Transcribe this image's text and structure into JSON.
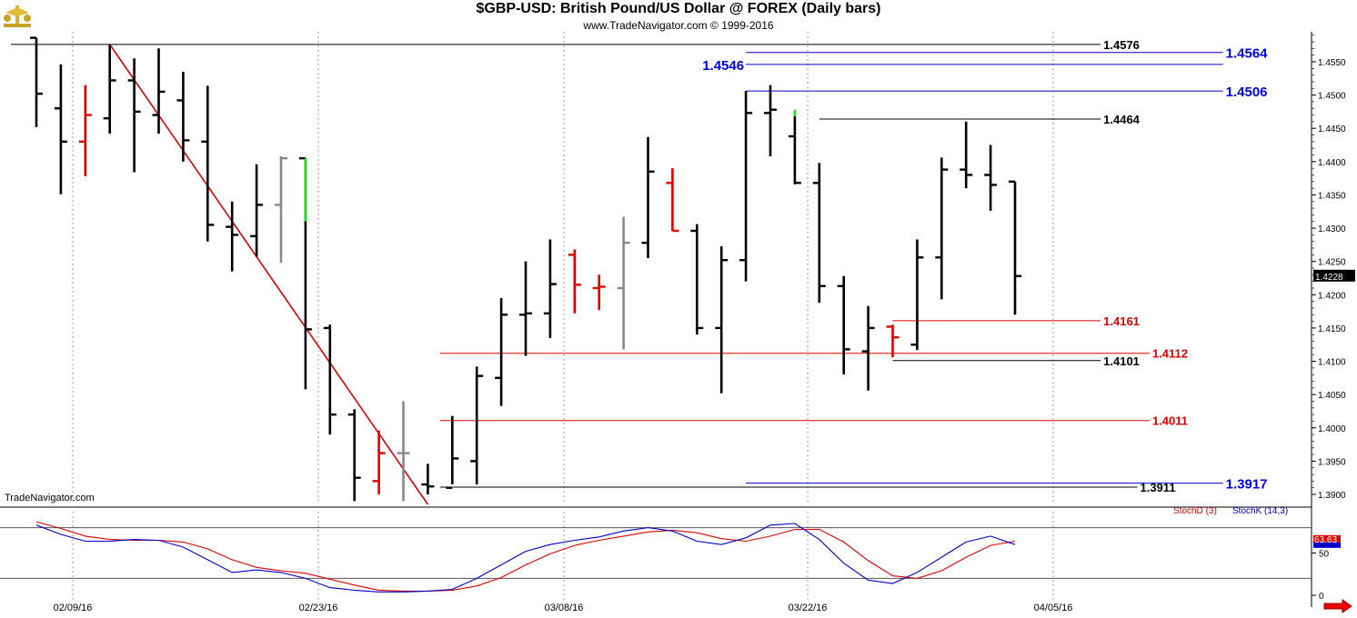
{
  "header": {
    "title": "$GBP-USD:  British Pound/US Dollar @ FOREX  (Daily bars)",
    "subtitle": "www.TradeNavigator.com © 1999-2016",
    "watermark": "TradeNavigator.com",
    "logo_icon": "trade-navigator-logo-icon"
  },
  "colors": {
    "bar_default": "#000000",
    "bar_red": "#e00000",
    "bar_gray": "#888888",
    "bar_green": "#22dd22",
    "line_red": "#dd0000",
    "line_blue": "#0000cc",
    "label_blue": "#0000ee",
    "stochD": "#dd0000",
    "stochK": "#0000cc",
    "arrow": "#ee0000"
  },
  "chart_data": {
    "type": "ohlc",
    "price_range": [
      1.3885,
      1.4595
    ],
    "price_ticks": [
      "1.3900",
      "1.3950",
      "1.4000",
      "1.4050",
      "1.4100",
      "1.4150",
      "1.4200",
      "1.4250",
      "1.4300",
      "1.4350",
      "1.4400",
      "1.4450",
      "1.4500",
      "1.4550"
    ],
    "x_labels": [
      "02/09/16",
      "02/23/16",
      "03/08/16",
      "03/22/16",
      "04/05/16"
    ],
    "last_price_label": "1.4228",
    "bars": [
      {
        "o": 1.4586,
        "h": 1.4586,
        "l": 1.4452,
        "c": 1.4502,
        "color": "black"
      },
      {
        "o": 1.448,
        "h": 1.4546,
        "l": 1.4351,
        "c": 1.443,
        "color": "black"
      },
      {
        "o": 1.443,
        "h": 1.4515,
        "l": 1.4378,
        "c": 1.447,
        "color": "red"
      },
      {
        "o": 1.4465,
        "h": 1.4576,
        "l": 1.4442,
        "c": 1.4522,
        "color": "black"
      },
      {
        "o": 1.4522,
        "h": 1.4555,
        "l": 1.4384,
        "c": 1.4475,
        "color": "black"
      },
      {
        "o": 1.447,
        "h": 1.457,
        "l": 1.4442,
        "c": 1.4505,
        "color": "black"
      },
      {
        "o": 1.4492,
        "h": 1.4535,
        "l": 1.44,
        "c": 1.4432,
        "color": "black"
      },
      {
        "o": 1.443,
        "h": 1.4514,
        "l": 1.428,
        "c": 1.4305,
        "color": "black"
      },
      {
        "o": 1.4302,
        "h": 1.434,
        "l": 1.4235,
        "c": 1.429,
        "color": "black"
      },
      {
        "o": 1.4288,
        "h": 1.4396,
        "l": 1.4257,
        "c": 1.4335,
        "color": "black"
      },
      {
        "o": 1.4335,
        "h": 1.4408,
        "l": 1.4248,
        "c": 1.4405,
        "color": "gray"
      },
      {
        "o": 1.4405,
        "h": 1.4405,
        "l": 1.4058,
        "c": 1.4148,
        "color": "black",
        "green_top": 1.431
      },
      {
        "o": 1.415,
        "h": 1.4155,
        "l": 1.399,
        "c": 1.402,
        "color": "black"
      },
      {
        "o": 1.402,
        "h": 1.4028,
        "l": 1.389,
        "c": 1.3925,
        "color": "black"
      },
      {
        "o": 1.392,
        "h": 1.3996,
        "l": 1.39,
        "c": 1.3962,
        "color": "red"
      },
      {
        "o": 1.3962,
        "h": 1.404,
        "l": 1.389,
        "c": 1.3962,
        "color": "gray"
      },
      {
        "o": 1.3915,
        "h": 1.3946,
        "l": 1.39,
        "c": 1.3912,
        "color": "black"
      },
      {
        "o": 1.391,
        "h": 1.4018,
        "l": 1.3915,
        "c": 1.3954,
        "color": "black"
      },
      {
        "o": 1.395,
        "h": 1.4092,
        "l": 1.3915,
        "c": 1.4078,
        "color": "black"
      },
      {
        "o": 1.4075,
        "h": 1.4195,
        "l": 1.4033,
        "c": 1.417,
        "color": "black"
      },
      {
        "o": 1.417,
        "h": 1.425,
        "l": 1.4108,
        "c": 1.4172,
        "color": "black"
      },
      {
        "o": 1.4172,
        "h": 1.4283,
        "l": 1.4135,
        "c": 1.4216,
        "color": "black"
      },
      {
        "o": 1.426,
        "h": 1.4268,
        "l": 1.4172,
        "c": 1.4215,
        "color": "red"
      },
      {
        "o": 1.421,
        "h": 1.423,
        "l": 1.4177,
        "c": 1.4212,
        "color": "red"
      },
      {
        "o": 1.421,
        "h": 1.4317,
        "l": 1.4118,
        "c": 1.4278,
        "color": "gray"
      },
      {
        "o": 1.4278,
        "h": 1.4437,
        "l": 1.4255,
        "c": 1.4385,
        "color": "black"
      },
      {
        "o": 1.4368,
        "h": 1.439,
        "l": 1.4296,
        "c": 1.4296,
        "color": "red"
      },
      {
        "o": 1.4296,
        "h": 1.4306,
        "l": 1.414,
        "c": 1.415,
        "color": "black"
      },
      {
        "o": 1.415,
        "h": 1.4273,
        "l": 1.4052,
        "c": 1.4252,
        "color": "black"
      },
      {
        "o": 1.4252,
        "h": 1.4506,
        "l": 1.422,
        "c": 1.4473,
        "color": "black"
      },
      {
        "o": 1.4473,
        "h": 1.4515,
        "l": 1.4408,
        "c": 1.4478,
        "color": "black"
      },
      {
        "o": 1.4438,
        "h": 1.4468,
        "l": 1.4366,
        "c": 1.4368,
        "color": "black",
        "green_top": 1.4478
      },
      {
        "o": 1.4368,
        "h": 1.4398,
        "l": 1.4188,
        "c": 1.4213,
        "color": "black"
      },
      {
        "o": 1.4213,
        "h": 1.4228,
        "l": 1.408,
        "c": 1.4118,
        "color": "black"
      },
      {
        "o": 1.4115,
        "h": 1.4183,
        "l": 1.4056,
        "c": 1.415,
        "color": "black"
      },
      {
        "o": 1.4152,
        "h": 1.4155,
        "l": 1.4106,
        "c": 1.4136,
        "color": "red"
      },
      {
        "o": 1.4125,
        "h": 1.4283,
        "l": 1.4117,
        "c": 1.4256,
        "color": "black"
      },
      {
        "o": 1.4256,
        "h": 1.4406,
        "l": 1.4193,
        "c": 1.4388,
        "color": "black"
      },
      {
        "o": 1.4388,
        "h": 1.446,
        "l": 1.436,
        "c": 1.438,
        "color": "black"
      },
      {
        "o": 1.438,
        "h": 1.4425,
        "l": 1.4326,
        "c": 1.4365,
        "color": "black"
      },
      {
        "o": 1.437,
        "h": 1.437,
        "l": 1.417,
        "c": 1.4228,
        "color": "black"
      }
    ],
    "levels": [
      {
        "price": 1.4576,
        "color": "black",
        "from_bar": -2,
        "to_bar": 43.5,
        "label": "1.4576",
        "label_color": "black"
      },
      {
        "price": 1.4564,
        "color": "blue",
        "from_bar": 29,
        "to_bar": 48.5,
        "label": "1.4564",
        "label_color": "blue"
      },
      {
        "price": 1.4546,
        "color": "blue",
        "from_bar": 29,
        "to_bar": 48.5,
        "label": "1.4546",
        "label_color": "blue",
        "label_side": "left"
      },
      {
        "price": 1.4506,
        "color": "blue",
        "from_bar": 29,
        "to_bar": 48.5,
        "label": "1.4506",
        "label_color": "blue"
      },
      {
        "price": 1.4464,
        "color": "black",
        "from_bar": 32,
        "to_bar": 43.5,
        "label": "1.4464",
        "label_color": "black"
      },
      {
        "price": 1.4161,
        "color": "red",
        "from_bar": 35,
        "to_bar": 43.5,
        "label": "1.4161",
        "label_color": "red"
      },
      {
        "price": 1.4112,
        "color": "red",
        "from_bar": 16.5,
        "to_bar": 45.5,
        "label": "1.4112",
        "label_color": "red"
      },
      {
        "price": 1.4101,
        "color": "black",
        "from_bar": 35,
        "to_bar": 43.5,
        "label": "1.4101",
        "label_color": "black"
      },
      {
        "price": 1.4011,
        "color": "red",
        "from_bar": 16.5,
        "to_bar": 45.5,
        "label": "1.4011",
        "label_color": "red"
      },
      {
        "price": 1.3917,
        "color": "blue",
        "from_bar": 29,
        "to_bar": 48.5,
        "label": "1.3917",
        "label_color": "blue"
      },
      {
        "price": 1.3911,
        "color": "black",
        "from_bar": 16.5,
        "to_bar": 45,
        "label": "1.3911",
        "label_color": "black"
      }
    ],
    "trendline": {
      "from_bar": 3,
      "from_price": 1.4576,
      "to_bar": 16,
      "to_price": 1.3885,
      "color": "red"
    },
    "stochastic": {
      "ylim": [
        0,
        100
      ],
      "y_ticks": [
        "50",
        "0"
      ],
      "overbought": 80,
      "oversold": 20,
      "legend": [
        "StochD (3)",
        "StochK (14,3)"
      ],
      "last_value_label": "63.63",
      "stochK": [
        83,
        72,
        64,
        64,
        66,
        65,
        57,
        42,
        27,
        30,
        27,
        20,
        9,
        6,
        4,
        4,
        5,
        7,
        20,
        36,
        52,
        60,
        65,
        69,
        76,
        80,
        76,
        64,
        60,
        68,
        83,
        85,
        66,
        38,
        18,
        14,
        27,
        45,
        63,
        70,
        60
      ],
      "stochD": [
        87,
        79,
        70,
        66,
        65,
        65,
        63,
        55,
        42,
        33,
        29,
        26,
        19,
        12,
        6,
        5,
        5,
        6,
        11,
        21,
        36,
        49,
        59,
        65,
        70,
        75,
        77,
        74,
        67,
        64,
        70,
        78,
        78,
        63,
        41,
        23,
        20,
        29,
        45,
        59,
        64
      ]
    }
  }
}
